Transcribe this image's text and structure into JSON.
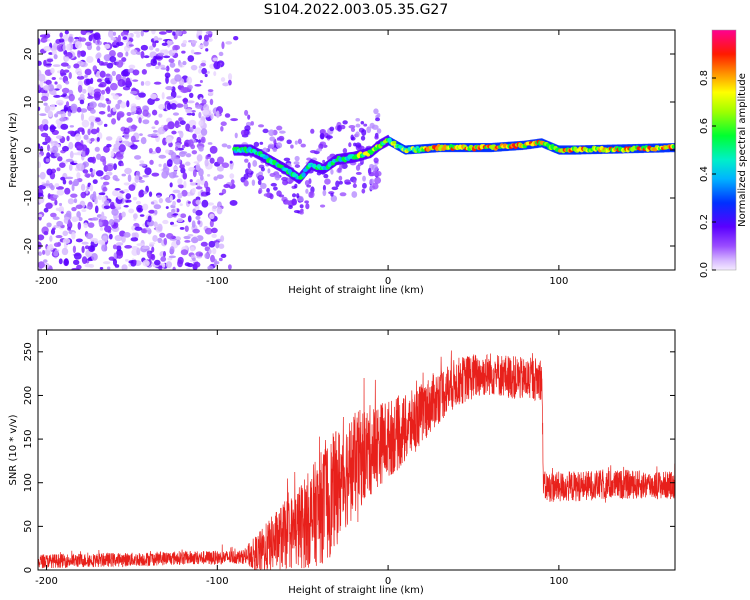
{
  "title": "S104.2022.003.05.35.G27",
  "chart_data": [
    {
      "type": "heatmap",
      "xlabel": "Height of straight line (km)",
      "ylabel": "Frequency (Hz)",
      "xlim": [
        -205,
        168
      ],
      "ylim": [
        -25,
        25
      ],
      "xticks": [
        -200,
        -100,
        0,
        100
      ],
      "yticks": [
        -20,
        -10,
        0,
        10,
        20
      ],
      "colorbar": {
        "label": "Normalized spectral amplitude",
        "range": [
          0.0,
          1.0
        ],
        "ticks": [
          0.0,
          0.2,
          0.4,
          0.6,
          0.8
        ],
        "colormap": "rainbow (purple-blue-cyan-green-yellow-red-magenta)"
      },
      "features": {
        "noise_region_x": [
          -205,
          -85
        ],
        "trace_points": [
          {
            "x": -90,
            "y": 0
          },
          {
            "x": -80,
            "y": 0
          },
          {
            "x": -70,
            "y": -2
          },
          {
            "x": -60,
            "y": -4
          },
          {
            "x": -52,
            "y": -6
          },
          {
            "x": -45,
            "y": -3
          },
          {
            "x": -38,
            "y": -4
          },
          {
            "x": -30,
            "y": -2
          },
          {
            "x": -20,
            "y": -1.5
          },
          {
            "x": -10,
            "y": -0.5
          },
          {
            "x": -5,
            "y": 1
          },
          {
            "x": 0,
            "y": 2
          },
          {
            "x": 10,
            "y": 0
          },
          {
            "x": 30,
            "y": 0.5
          },
          {
            "x": 60,
            "y": 0.5
          },
          {
            "x": 80,
            "y": 1
          },
          {
            "x": 90,
            "y": 1.5
          },
          {
            "x": 100,
            "y": 0
          },
          {
            "x": 110,
            "y": 0
          },
          {
            "x": 168,
            "y": 0.5
          }
        ]
      }
    },
    {
      "type": "line",
      "xlabel": "Height of straight line (km)",
      "ylabel": "SNR (10 * v/v)",
      "xlim": [
        -205,
        168
      ],
      "ylim": [
        0,
        275
      ],
      "xticks": [
        -200,
        -100,
        0,
        100
      ],
      "yticks": [
        0,
        50,
        100,
        150,
        200,
        250
      ],
      "color": "#e8201b",
      "series": [
        {
          "points": [
            [
              -205,
              10
            ],
            [
              -180,
              11
            ],
            [
              -150,
              12
            ],
            [
              -120,
              14
            ],
            [
              -100,
              14
            ],
            [
              -85,
              15
            ],
            [
              -75,
              20
            ],
            [
              -65,
              35
            ],
            [
              -55,
              45
            ],
            [
              -45,
              60
            ],
            [
              -35,
              80
            ],
            [
              -25,
              110
            ],
            [
              -15,
              130
            ],
            [
              -5,
              145
            ],
            [
              0,
              150
            ],
            [
              10,
              160
            ],
            [
              20,
              180
            ],
            [
              30,
              200
            ],
            [
              40,
              215
            ],
            [
              50,
              222
            ],
            [
              60,
              225
            ],
            [
              70,
              222
            ],
            [
              80,
              218
            ],
            [
              90,
              220
            ],
            [
              91,
              95
            ],
            [
              100,
              95
            ],
            [
              120,
              97
            ],
            [
              140,
              98
            ],
            [
              168,
              97
            ]
          ],
          "noise_amplitude": [
            [
              -205,
              8
            ],
            [
              -85,
              8
            ],
            [
              -75,
              25
            ],
            [
              -55,
              45
            ],
            [
              -35,
              70
            ],
            [
              -20,
              60
            ],
            [
              0,
              45
            ],
            [
              20,
              35
            ],
            [
              40,
              28
            ],
            [
              60,
              25
            ],
            [
              90,
              25
            ],
            [
              91,
              18
            ],
            [
              168,
              16
            ]
          ]
        }
      ]
    }
  ]
}
